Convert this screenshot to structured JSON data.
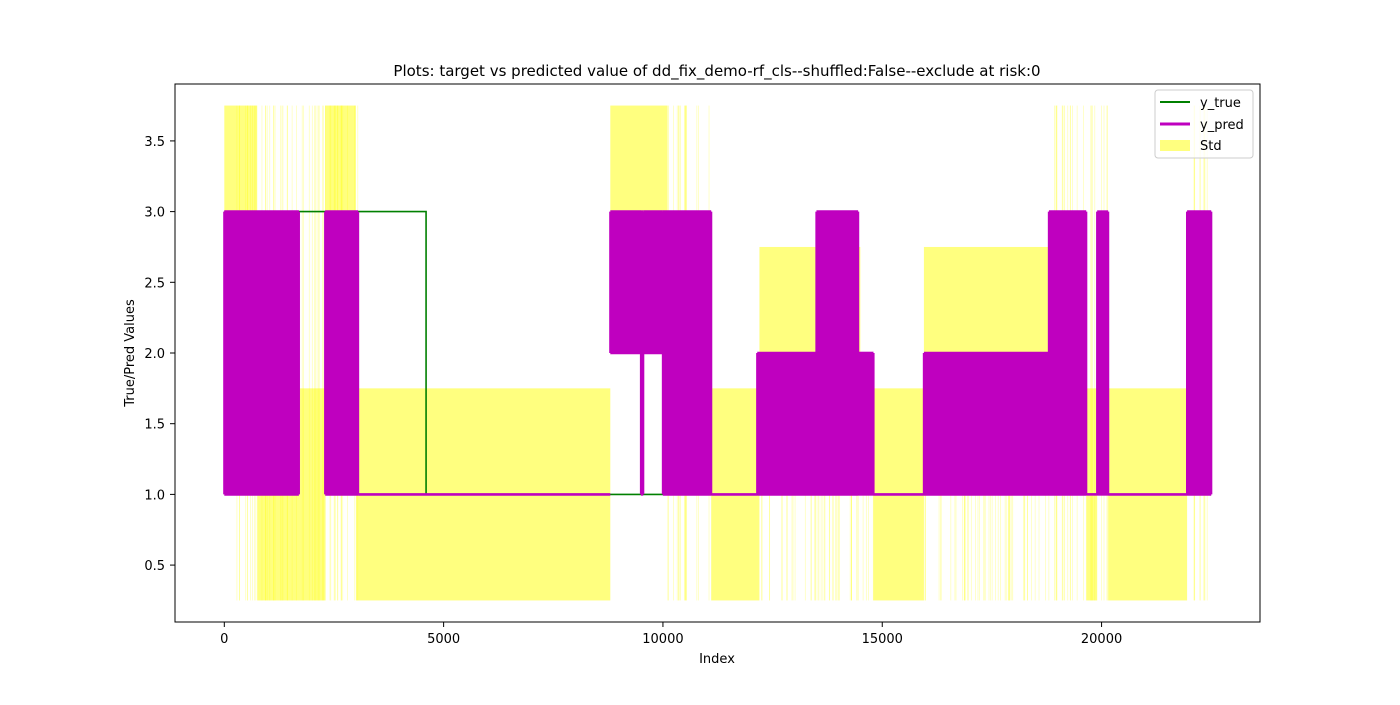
{
  "chart_data": {
    "type": "line",
    "title": "Plots: target vs predicted value of dd_fix_demo-rf_cls--shuffled:False--exclude at risk:0",
    "xlabel": "Index",
    "ylabel": "True/Pred Values",
    "xlim": [
      -1124,
      23612
    ],
    "ylim": [
      0.0975,
      3.9025
    ],
    "xticks": [
      0,
      5000,
      10000,
      15000,
      20000
    ],
    "yticks": [
      0.5,
      1.0,
      1.5,
      2.0,
      2.5,
      3.0,
      3.5
    ],
    "grid": false,
    "legend_position": "top-right",
    "series": [
      {
        "name": "y_true",
        "color": "#008000",
        "style": "line",
        "points": [
          [
            0,
            3
          ],
          [
            4600,
            3
          ],
          [
            4600,
            1
          ],
          [
            22488,
            1
          ]
        ]
      },
      {
        "name": "y_pred",
        "color": "#bf00bf",
        "style": "line",
        "stepped": true,
        "segments": [
          {
            "x": [
              0,
              1700
            ],
            "values": [
              1,
              3
            ]
          },
          {
            "x": [
              2300,
              3050
            ],
            "values": [
              1,
              3
            ]
          },
          {
            "x": [
              3050,
              8800
            ],
            "values": [
              1
            ]
          },
          {
            "x": [
              8800,
              9500
            ],
            "values": [
              2,
              3
            ]
          },
          {
            "x": [
              9500,
              9550
            ],
            "values": [
              1,
              3
            ]
          },
          {
            "x": [
              9550,
              10000
            ],
            "values": [
              2,
              3
            ]
          },
          {
            "x": [
              10000,
              11100
            ],
            "values": [
              1,
              3
            ]
          },
          {
            "x": [
              11100,
              12150
            ],
            "values": [
              1
            ]
          },
          {
            "x": [
              12150,
              13500
            ],
            "values": [
              1,
              2
            ]
          },
          {
            "x": [
              13500,
              14450
            ],
            "values": [
              1,
              3
            ]
          },
          {
            "x": [
              14450,
              14800
            ],
            "values": [
              1,
              2
            ]
          },
          {
            "x": [
              14800,
              15950
            ],
            "values": [
              1
            ]
          },
          {
            "x": [
              15950,
              18800
            ],
            "values": [
              1,
              2
            ]
          },
          {
            "x": [
              18800,
              19650
            ],
            "values": [
              1,
              3
            ]
          },
          {
            "x": [
              19650,
              19900
            ],
            "values": [
              1
            ]
          },
          {
            "x": [
              19900,
              20150
            ],
            "values": [
              1,
              3
            ]
          },
          {
            "x": [
              20150,
              21950
            ],
            "values": [
              1
            ]
          },
          {
            "x": [
              21950,
              22500
            ],
            "values": [
              1,
              3
            ]
          }
        ]
      },
      {
        "name": "Std",
        "color": "#ffff00",
        "alpha": 0.5,
        "style": "band",
        "bands": [
          {
            "x0": 0,
            "x1": 750,
            "y0": 3.0,
            "y1": 3.75
          },
          {
            "x0": 750,
            "x1": 2300,
            "y0": 0.25,
            "y1": 1.75
          },
          {
            "x0": 2300,
            "x1": 3000,
            "y0": 3.0,
            "y1": 3.75
          },
          {
            "x0": 3000,
            "x1": 8800,
            "y0": 0.25,
            "y1": 1.75
          },
          {
            "x0": 8800,
            "x1": 10100,
            "y0": 3.0,
            "y1": 3.75
          },
          {
            "x0": 9200,
            "x1": 10000,
            "y0": 2.25,
            "y1": 3.0
          },
          {
            "x0": 11100,
            "x1": 12200,
            "y0": 0.25,
            "y1": 1.75
          },
          {
            "x0": 12200,
            "x1": 14500,
            "y0": 2.0,
            "y1": 2.75
          },
          {
            "x0": 14800,
            "x1": 15950,
            "y0": 0.25,
            "y1": 1.75
          },
          {
            "x0": 15950,
            "x1": 18800,
            "y0": 2.0,
            "y1": 2.75
          },
          {
            "x0": 19650,
            "x1": 19900,
            "y0": 0.25,
            "y1": 1.75
          },
          {
            "x0": 20150,
            "x1": 21950,
            "y0": 0.25,
            "y1": 1.75
          }
        ],
        "sparse_bands": [
          {
            "x0": 0,
            "x1": 3050,
            "y0": 0.25,
            "y1": 3.75
          },
          {
            "x0": 10100,
            "x1": 11100,
            "y0": 0.25,
            "y1": 3.75
          },
          {
            "x0": 12200,
            "x1": 14800,
            "y0": 0.25,
            "y1": 1.75
          },
          {
            "x0": 15950,
            "x1": 18800,
            "y0": 0.25,
            "y1": 1.75
          },
          {
            "x0": 18800,
            "x1": 20150,
            "y0": 0.25,
            "y1": 3.75
          },
          {
            "x0": 21950,
            "x1": 22500,
            "y0": 0.25,
            "y1": 3.75
          }
        ]
      }
    ]
  }
}
